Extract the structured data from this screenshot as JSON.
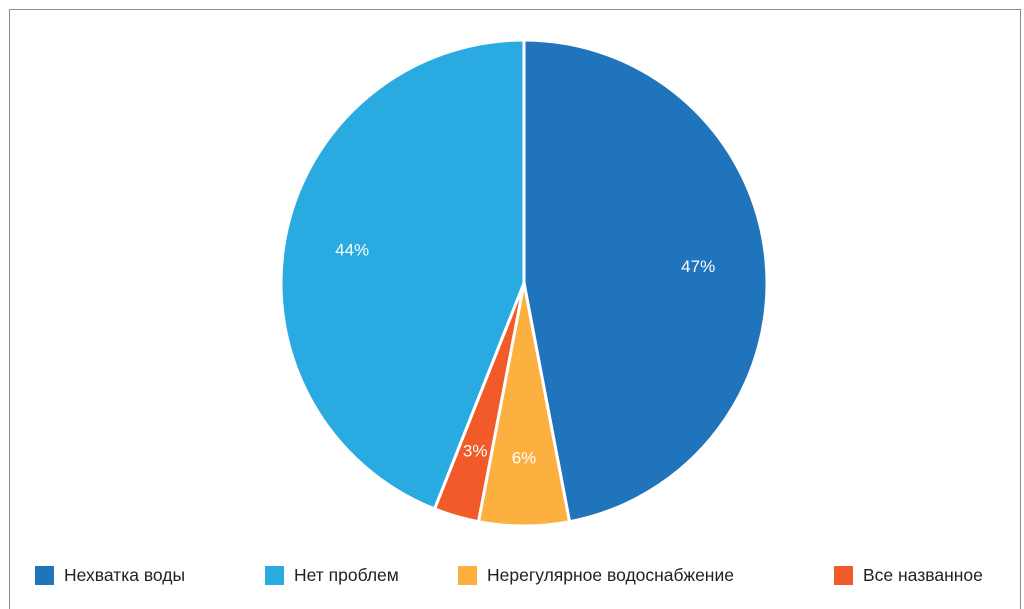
{
  "chart_data": {
    "type": "pie",
    "title": "",
    "slices": [
      {
        "name": "Нехватка воды",
        "value": 47,
        "label": "47%",
        "color": "#1F74BB"
      },
      {
        "name": "Нерегулярное водоснабжение",
        "value": 6,
        "label": "6%",
        "color": "#FBB040"
      },
      {
        "name": "Все названное",
        "value": 3,
        "label": "3%",
        "color": "#F15A29"
      },
      {
        "name": "Нет проблем",
        "value": 44,
        "label": "44%",
        "color": "#29ABE2"
      }
    ],
    "start_angle_deg": 0,
    "direction": "clockwise",
    "legend": {
      "position": "bottom",
      "items": [
        {
          "label": "Нехватка воды",
          "color": "#1F74BB"
        },
        {
          "label": "Нет проблем",
          "color": "#29ABE2"
        },
        {
          "label": "Нерегулярное водоснабжение",
          "color": "#FBB040"
        },
        {
          "label": "Все названное",
          "color": "#F15A29"
        }
      ]
    }
  }
}
